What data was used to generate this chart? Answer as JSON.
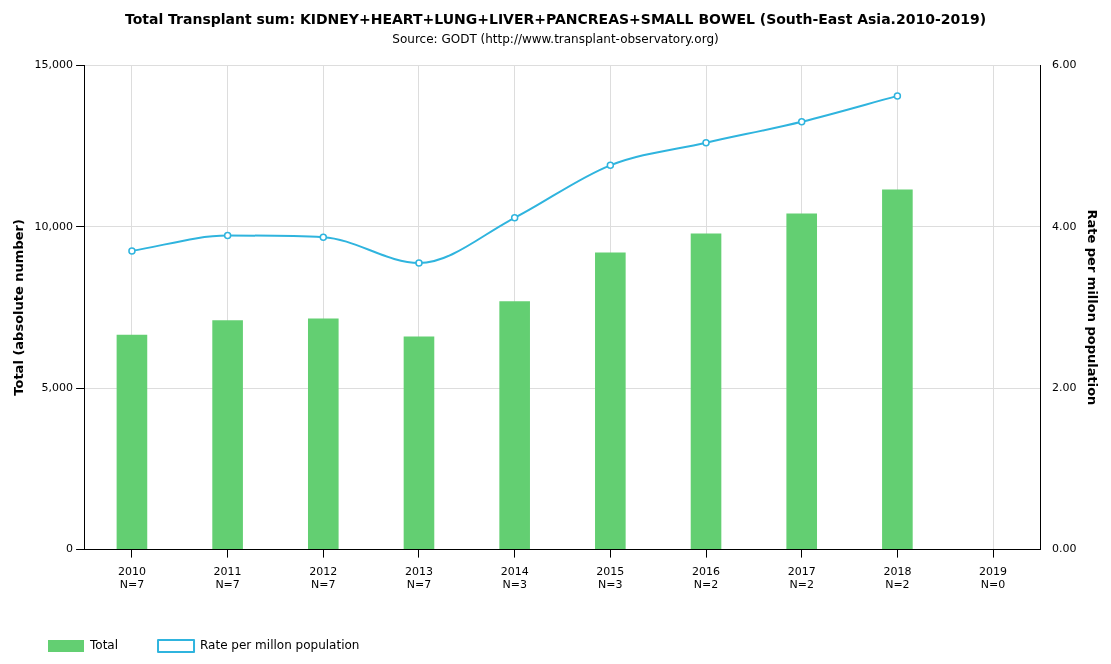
{
  "chart_data": {
    "type": "bar",
    "title": "Total Transplant sum: KIDNEY+HEART+LUNG+LIVER+PANCREAS+SMALL BOWEL (South-East Asia.2010-2019)",
    "subtitle": "Source: GODT (http://www.transplant-observatory.org)",
    "ylabel": "Total (absolute number)",
    "y2label": "Rate per millon population",
    "categories": [
      "2010\nN=7",
      "2011\nN=7",
      "2012\nN=7",
      "2013\nN=7",
      "2014\nN=3",
      "2015\nN=3",
      "2016\nN=2",
      "2017\nN=2",
      "2018\nN=2",
      "2019\nN=0"
    ],
    "series": [
      {
        "name": "Total",
        "color": "#63cf72",
        "values": [
          6650,
          7100,
          7160,
          6600,
          7690,
          9200,
          9790,
          10410,
          11150,
          null
        ]
      },
      {
        "name": "Rate per millon population",
        "type": "line",
        "axis": "y2",
        "color": "#2fb4de",
        "values": [
          3.7,
          3.89,
          3.87,
          3.55,
          4.11,
          4.76,
          5.04,
          5.3,
          5.62,
          null
        ]
      }
    ],
    "ylim": [
      0,
      15000
    ],
    "yticks": [
      {
        "value": 0,
        "label": "0"
      },
      {
        "value": 5000,
        "label": "5,000"
      },
      {
        "value": 10000,
        "label": "10,000"
      },
      {
        "value": 15000,
        "label": "15,000"
      }
    ],
    "y2lim": [
      0,
      6
    ],
    "y2ticks": [
      {
        "value": 0,
        "label": "0.00"
      },
      {
        "value": 2,
        "label": "2.00"
      },
      {
        "value": 4,
        "label": "4.00"
      },
      {
        "value": 6,
        "label": "6.00"
      }
    ],
    "grid": true,
    "legend": "bottom left",
    "marker": "circle"
  }
}
